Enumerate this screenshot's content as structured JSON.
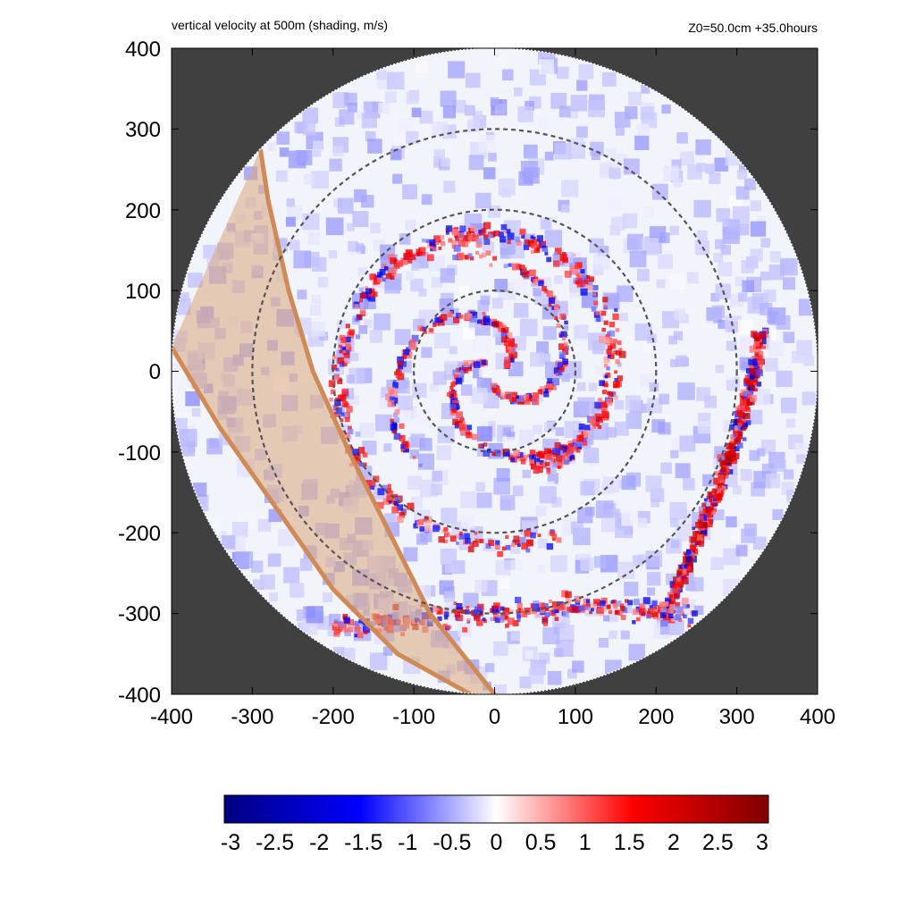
{
  "header": {
    "title": "vertical velocity at 500m (shading, m/s)",
    "info": "Z0=50.0cm  +35.0hours"
  },
  "chart_data": {
    "type": "heatmap",
    "title": "vertical velocity at 500m (shading, m/s)",
    "annotation": "Z0=50.0cm  +35.0hours",
    "xlabel": "",
    "ylabel": "",
    "xlim": [
      -400,
      400
    ],
    "ylim": [
      -400,
      400
    ],
    "x_ticks": [
      "-400",
      "-300",
      "-200",
      "-100",
      "0",
      "100",
      "200",
      "300",
      "400"
    ],
    "y_ticks": [
      "400",
      "300",
      "200",
      "100",
      "0",
      "-100",
      "-200",
      "-300",
      "-400"
    ],
    "grid": false,
    "domain_radius": 400,
    "reference_circles_radius": [
      100,
      200,
      300
    ],
    "shaded_band": {
      "color": "#d08a55",
      "left_edge": [
        [
          -290,
          275
        ],
        [
          -280,
          210
        ],
        [
          -255,
          100
        ],
        [
          -225,
          0
        ],
        [
          -180,
          -100
        ],
        [
          -130,
          -200
        ],
        [
          -80,
          -300
        ],
        [
          0,
          -400
        ]
      ],
      "right_edge": [
        [
          -400,
          30
        ],
        [
          -340,
          -70
        ],
        [
          -270,
          -170
        ],
        [
          -200,
          -270
        ],
        [
          -120,
          -350
        ],
        [
          -30,
          -400
        ]
      ]
    },
    "features": [
      {
        "name": "inner spiral bands",
        "radius_range": [
          0,
          150
        ],
        "sign": "mixed",
        "peak": 2.0
      },
      {
        "name": "rainband ring",
        "radius_range": [
          100,
          250
        ],
        "sign": "positive",
        "peak": 2.0
      },
      {
        "name": "outer rainband",
        "x_range": [
          180,
          340
        ],
        "y_range": [
          -300,
          50
        ],
        "sign": "positive",
        "peak": 2.5
      },
      {
        "name": "southern band",
        "x_range": [
          -200,
          250
        ],
        "y_range": [
          -360,
          -260
        ],
        "sign": "mixed",
        "peak": 2.0
      }
    ],
    "colorbar": {
      "min": -3,
      "max": 3,
      "ticks": [
        "-3",
        "-2.5",
        "-2",
        "-1.5",
        "-1",
        "-0.5",
        "0",
        "0.5",
        "1",
        "1.5",
        "2",
        "2.5",
        "3"
      ],
      "colors": [
        "#000080",
        "#0000ff",
        "#ffffff",
        "#ff0000",
        "#800000"
      ]
    },
    "colors": {
      "background_outside_domain": "#404040",
      "band_fill": "#d9a67a",
      "band_edge": "#d08a55",
      "circle_stroke": "#555555"
    }
  }
}
